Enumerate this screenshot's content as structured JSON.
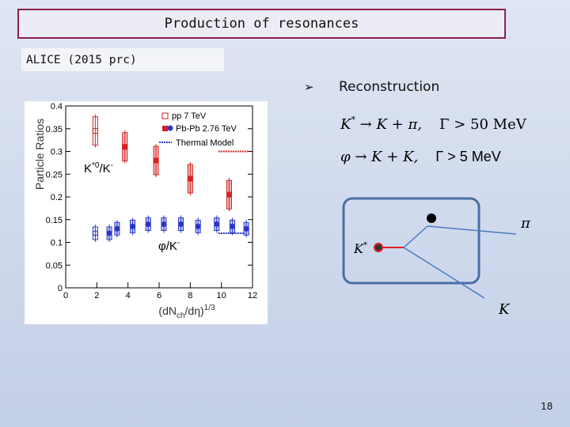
{
  "slide": {
    "title": "Production of resonances",
    "reference": "ALICE (2015 prc)",
    "bullet_label": "Reconstruction",
    "page_number": "18",
    "equation_1": "K* → K + π,    Γ > 50 MeV",
    "equation_2": "φ → K + K,    Γ > 5 MeV",
    "diagram_labels": {
      "kstar": "K*",
      "pi": "π",
      "k": "K"
    }
  },
  "chart_data": {
    "type": "scatter",
    "ylabel": "Particle Ratios",
    "xlabel": "(dN_ch/dη)^1/3",
    "xlim": [
      0,
      12
    ],
    "ylim": [
      0,
      0.4
    ],
    "x_ticks": [
      "0",
      "2",
      "4",
      "6",
      "8",
      "10",
      "12"
    ],
    "y_ticks": [
      "0",
      "0.05",
      "0.1",
      "0.15",
      "0.2",
      "0.25",
      "0.3",
      "0.35",
      "0.4"
    ],
    "legend": [
      "pp 7 TeV",
      "Pb-Pb 2.76 TeV",
      "Thermal Model"
    ],
    "annotations": [
      "K*0/K-",
      "φ/K-"
    ],
    "series": [
      {
        "name": "K*0/K- pp 7 TeV",
        "x": [
          1.9
        ],
        "y": [
          0.345
        ],
        "color": "#d22222"
      },
      {
        "name": "K*0/K- Pb-Pb 2.76 TeV",
        "x": [
          3.8,
          5.8,
          8.0,
          10.5
        ],
        "y": [
          0.31,
          0.28,
          0.24,
          0.205
        ],
        "color": "#d22222"
      },
      {
        "name": "φ/K- pp 7 TeV",
        "x": [
          1.9
        ],
        "y": [
          0.12
        ],
        "color": "#2a35c8"
      },
      {
        "name": "φ/K- Pb-Pb 2.76 TeV",
        "x": [
          2.8,
          3.3,
          4.3,
          5.3,
          6.3,
          7.4,
          8.5,
          9.7,
          10.7,
          11.6
        ],
        "y": [
          0.12,
          0.13,
          0.135,
          0.14,
          0.14,
          0.14,
          0.135,
          0.14,
          0.135,
          0.13
        ],
        "color": "#2a35c8"
      }
    ],
    "thermal_model": [
      {
        "ratio": "K*0/K-",
        "x": [
          9.8,
          11.8
        ],
        "y": [
          0.3,
          0.3
        ]
      },
      {
        "ratio": "φ/K-",
        "x": [
          9.8,
          11.8
        ],
        "y": [
          0.12,
          0.12
        ]
      }
    ]
  }
}
